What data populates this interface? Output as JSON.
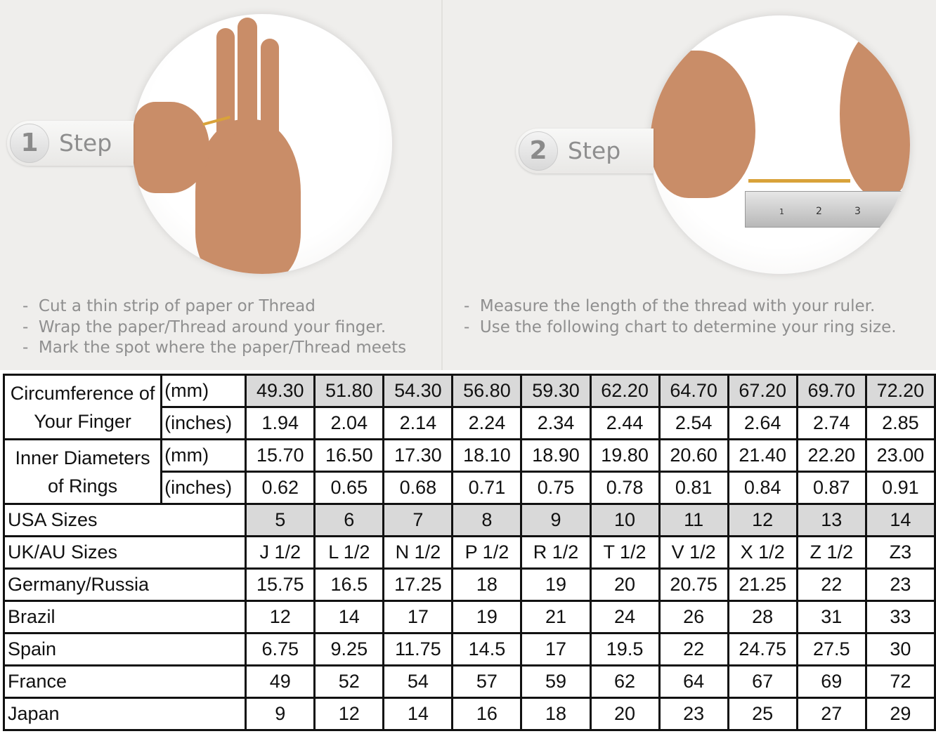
{
  "steps": [
    {
      "number": "1",
      "label": "Step",
      "bullets": [
        "Cut a thin strip of paper or Thread",
        "Wrap the paper/Thread around your finger.",
        "Mark the spot where the paper/Thread meets"
      ]
    },
    {
      "number": "2",
      "label": "Step",
      "bullets": [
        "Measure the length of the thread with your ruler.",
        "Use the following chart to determine your ring size."
      ]
    }
  ],
  "ruler_marks": [
    "1",
    "2",
    "3"
  ],
  "colors": {
    "background": "#efeeec",
    "highlight_cells": "#d9d9d9",
    "grid": "#111111",
    "text_gray": "#8f8f8f"
  },
  "table": {
    "groups": [
      {
        "label": "Circumference of Your Finger",
        "rows": [
          {
            "unit": "(mm)",
            "values": [
              "49.30",
              "51.80",
              "54.30",
              "56.80",
              "59.30",
              "62.20",
              "64.70",
              "67.20",
              "69.70",
              "72.20"
            ],
            "highlight": true
          },
          {
            "unit": "(inches)",
            "values": [
              "1.94",
              "2.04",
              "2.14",
              "2.24",
              "2.34",
              "2.44",
              "2.54",
              "2.64",
              "2.74",
              "2.85"
            ],
            "highlight": false
          }
        ]
      },
      {
        "label": "Inner Diameters of Rings",
        "rows": [
          {
            "unit": "(mm)",
            "values": [
              "15.70",
              "16.50",
              "17.30",
              "18.10",
              "18.90",
              "19.80",
              "20.60",
              "21.40",
              "22.20",
              "23.00"
            ],
            "highlight": false
          },
          {
            "unit": "(inches)",
            "values": [
              "0.62",
              "0.65",
              "0.68",
              "0.71",
              "0.75",
              "0.78",
              "0.81",
              "0.84",
              "0.87",
              "0.91"
            ],
            "highlight": false
          }
        ]
      }
    ],
    "rows": [
      {
        "label": "USA Sizes",
        "values": [
          "5",
          "6",
          "7",
          "8",
          "9",
          "10",
          "11",
          "12",
          "13",
          "14"
        ],
        "highlight": true
      },
      {
        "label": "UK/AU Sizes",
        "values": [
          "J 1/2",
          "L 1/2",
          "N 1/2",
          "P 1/2",
          "R 1/2",
          "T 1/2",
          "V 1/2",
          "X 1/2",
          "Z 1/2",
          "Z3"
        ],
        "highlight": false
      },
      {
        "label": "Germany/Russia",
        "values": [
          "15.75",
          "16.5",
          "17.25",
          "18",
          "19",
          "20",
          "20.75",
          "21.25",
          "22",
          "23"
        ],
        "highlight": false
      },
      {
        "label": "Brazil",
        "values": [
          "12",
          "14",
          "17",
          "19",
          "21",
          "24",
          "26",
          "28",
          "31",
          "33"
        ],
        "highlight": false
      },
      {
        "label": "Spain",
        "values": [
          "6.75",
          "9.25",
          "11.75",
          "14.5",
          "17",
          "19.5",
          "22",
          "24.75",
          "27.5",
          "30"
        ],
        "highlight": false
      },
      {
        "label": "France",
        "values": [
          "49",
          "52",
          "54",
          "57",
          "59",
          "62",
          "64",
          "67",
          "69",
          "72"
        ],
        "highlight": false
      },
      {
        "label": "Japan",
        "values": [
          "9",
          "12",
          "14",
          "16",
          "18",
          "20",
          "23",
          "25",
          "27",
          "29"
        ],
        "highlight": false
      }
    ]
  }
}
